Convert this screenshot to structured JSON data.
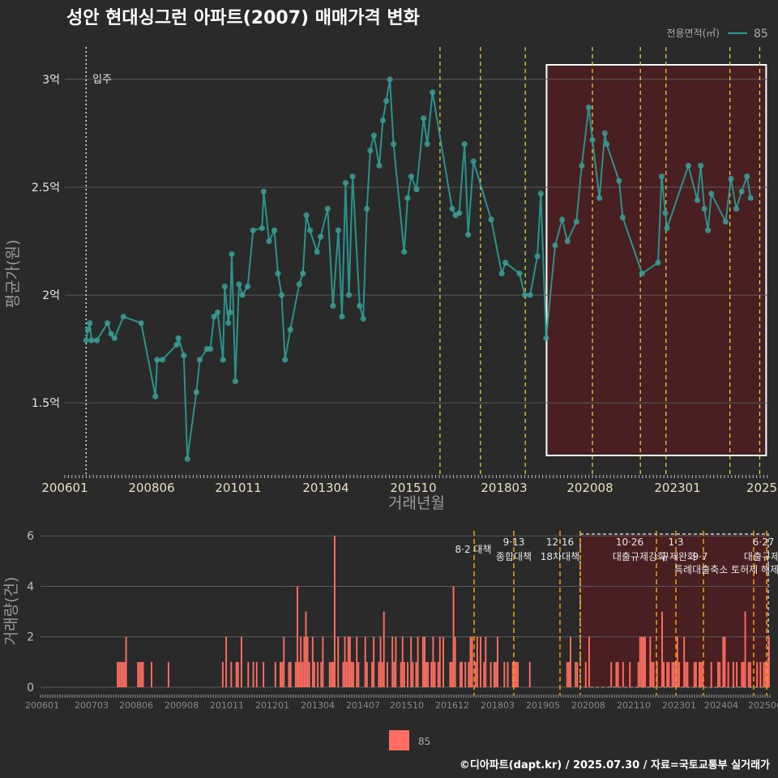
{
  "title": "성안 현대싱그런 아파트(2007) 매매가격 변화",
  "footer": "©디아파트(dapt.kr) / 2025.07.30 / 자료=국토교통부 실거래가",
  "colors": {
    "background": "#2a2a2b",
    "price_line": "#2a9d97",
    "price_point": "#3a9c95",
    "bar": "#ff6f61",
    "highlight_fill": "#4a1f22",
    "event_line_top": "#e8e03a",
    "event_line_bottom": "#f2a000",
    "grid": "#5a5a5a"
  },
  "chart_data": [
    {
      "type": "line",
      "title": "성안 현대싱그런 아파트(2007) 매매가격 변화",
      "xlabel": "거래년월",
      "ylabel": "평균가(원)",
      "ylim": [
        1.17,
        3.15
      ],
      "y_unit": "억",
      "y_ticks": [
        1.5,
        2.0,
        2.5,
        3.0
      ],
      "y_tick_labels": [
        "1.5억",
        "2억",
        "2.5억",
        "3억"
      ],
      "x_ticks": [
        "200601",
        "200806",
        "201011",
        "201304",
        "201510",
        "201803",
        "202008",
        "202301",
        "2025"
      ],
      "legend": {
        "title": "전용면적(㎡)",
        "entries": [
          "85"
        ],
        "position": "top-right"
      },
      "annotation": {
        "label": "입주",
        "x": "2007.0"
      },
      "grid": true,
      "series": [
        {
          "name": "85",
          "points": [
            [
              "2007.00",
              1.79
            ],
            [
              "2007.08",
              1.84
            ],
            [
              "2007.17",
              1.87
            ],
            [
              "2007.25",
              1.79
            ],
            [
              "2007.50",
              1.79
            ],
            [
              "2008.00",
              1.87
            ],
            [
              "2008.17",
              1.82
            ],
            [
              "2008.33",
              1.8
            ],
            [
              "2008.75",
              1.9
            ],
            [
              "2009.58",
              1.87
            ],
            [
              "2010.25",
              1.53
            ],
            [
              "2010.33",
              1.7
            ],
            [
              "2010.58",
              1.7
            ],
            [
              "2011.25",
              1.77
            ],
            [
              "2011.33",
              1.8
            ],
            [
              "2011.58",
              1.72
            ],
            [
              "2011.75",
              1.24
            ],
            [
              "2012.17",
              1.55
            ],
            [
              "2012.33",
              1.7
            ],
            [
              "2012.67",
              1.75
            ],
            [
              "2012.83",
              1.75
            ],
            [
              "2013.00",
              1.9
            ],
            [
              "2013.17",
              1.92
            ],
            [
              "2013.42",
              1.7
            ],
            [
              "2013.50",
              2.04
            ],
            [
              "2013.67",
              1.87
            ],
            [
              "2013.75",
              1.92
            ],
            [
              "2013.83",
              2.19
            ],
            [
              "2014.00",
              1.6
            ],
            [
              "2014.17",
              2.05
            ],
            [
              "2014.33",
              2.0
            ],
            [
              "2014.58",
              2.04
            ],
            [
              "2014.83",
              2.3
            ],
            [
              "2015.25",
              2.31
            ],
            [
              "2015.33",
              2.48
            ],
            [
              "2015.58",
              2.25
            ],
            [
              "2015.83",
              2.3
            ],
            [
              "2016.00",
              2.1
            ],
            [
              "2016.17",
              2.0
            ],
            [
              "2016.33",
              1.7
            ],
            [
              "2016.58",
              1.84
            ],
            [
              "2017.00",
              2.05
            ],
            [
              "2017.17",
              2.1
            ],
            [
              "2017.33",
              2.37
            ],
            [
              "2017.50",
              2.3
            ],
            [
              "2017.83",
              2.2
            ],
            [
              "2018.00",
              2.27
            ],
            [
              "2018.33",
              2.4
            ],
            [
              "2018.58",
              1.95
            ],
            [
              "2018.83",
              2.3
            ],
            [
              "2019.00",
              1.9
            ],
            [
              "2019.17",
              2.52
            ],
            [
              "2019.33",
              2.0
            ],
            [
              "2019.50",
              2.55
            ],
            [
              "2019.83",
              1.95
            ],
            [
              "2020.00",
              1.89
            ],
            [
              "2020.17",
              2.4
            ],
            [
              "2020.33",
              2.67
            ],
            [
              "2020.50",
              2.74
            ],
            [
              "2020.75",
              2.6
            ],
            [
              "2020.92",
              2.81
            ],
            [
              "2021.08",
              2.9
            ],
            [
              "2021.25",
              3.0
            ],
            [
              "2021.42",
              2.7
            ],
            [
              "2021.92",
              2.2
            ],
            [
              "2022.08",
              2.45
            ],
            [
              "2022.25",
              2.55
            ],
            [
              "2022.50",
              2.49
            ],
            [
              "2022.83",
              2.82
            ],
            [
              "2023.00",
              2.7
            ],
            [
              "2023.25",
              2.94
            ],
            [
              "2024.17",
              2.4
            ],
            [
              "2024.33",
              2.37
            ],
            [
              "2024.50",
              2.38
            ],
            [
              "2024.75",
              2.7
            ],
            [
              "2024.92",
              2.28
            ],
            [
              "2025.17",
              2.62
            ],
            [
              "2026.00",
              2.35
            ],
            [
              "2026.50",
              2.1
            ],
            [
              "2026.67",
              2.15
            ],
            [
              "2027.33",
              2.1
            ],
            [
              "2027.58",
              2.0
            ],
            [
              "2027.83",
              2.0
            ],
            [
              "2028.17",
              2.18
            ],
            [
              "2028.33",
              2.47
            ],
            [
              "2028.58",
              1.8
            ],
            [
              "2029.00",
              2.23
            ],
            [
              "2029.33",
              2.35
            ],
            [
              "2029.58",
              2.25
            ],
            [
              "2030.00",
              2.34
            ],
            [
              "2030.25",
              2.6
            ],
            [
              "2030.58",
              2.87
            ],
            [
              "2030.75",
              2.72
            ],
            [
              "2031.08",
              2.45
            ],
            [
              "2031.33",
              2.75
            ],
            [
              "2031.42",
              2.7
            ],
            [
              "2032.00",
              2.53
            ],
            [
              "2032.17",
              2.36
            ],
            [
              "2033.08",
              2.1
            ],
            [
              "2033.83",
              2.15
            ],
            [
              "2034.00",
              2.55
            ],
            [
              "2034.17",
              2.38
            ],
            [
              "2034.25",
              2.31
            ],
            [
              "2035.25",
              2.6
            ],
            [
              "2035.67",
              2.44
            ],
            [
              "2035.83",
              2.6
            ],
            [
              "2036.00",
              2.4
            ],
            [
              "2036.17",
              2.3
            ],
            [
              "2036.33",
              2.47
            ],
            [
              "2037.00",
              2.34
            ],
            [
              "2037.25",
              2.54
            ],
            [
              "2037.50",
              2.4
            ],
            [
              "2037.75",
              2.48
            ],
            [
              "2038.00",
              2.55
            ],
            [
              "2038.17",
              2.45
            ]
          ]
        }
      ]
    },
    {
      "type": "bar",
      "ylabel": "거래량(건)",
      "ylim": [
        0,
        6.2
      ],
      "y_ticks": [
        0,
        2,
        4,
        6
      ],
      "x_ticks": [
        "200601",
        "200703",
        "200806",
        "200908",
        "201011",
        "201201",
        "201304",
        "201407",
        "201510",
        "201612",
        "201803",
        "201905",
        "202008",
        "202110",
        "202301",
        "202404",
        "202506"
      ],
      "legend": {
        "entries": [
          "85"
        ],
        "position": "bottom"
      },
      "series": [
        {
          "name": "85",
          "values": [
            0,
            0,
            0,
            0,
            0,
            0,
            0,
            0,
            0,
            0,
            0,
            0,
            0,
            0,
            0,
            0,
            0,
            0,
            0,
            0,
            0,
            0,
            0,
            0,
            0,
            0,
            0,
            0,
            0,
            0,
            0,
            0,
            0,
            0,
            0,
            0,
            0,
            0,
            0,
            0,
            0,
            0,
            0,
            0,
            0,
            1,
            1,
            1,
            1,
            1,
            2,
            0,
            0,
            0,
            0,
            0,
            0,
            1,
            1,
            1,
            1,
            0,
            0,
            0,
            0,
            1,
            0,
            0,
            0,
            0,
            0,
            0,
            0,
            0,
            0,
            1,
            0,
            0,
            0,
            0,
            0,
            0,
            0,
            0,
            0,
            0,
            0,
            0,
            0,
            0,
            0,
            0,
            0,
            0,
            0,
            0,
            0,
            0,
            0,
            0,
            0,
            0,
            0,
            0,
            0,
            0,
            0,
            1,
            0,
            2,
            0,
            0,
            1,
            0,
            0,
            1,
            1,
            0,
            2,
            0,
            0,
            0,
            1,
            0,
            0,
            1,
            0,
            1,
            0,
            0,
            0,
            1,
            0,
            0,
            0,
            0,
            0,
            0,
            1,
            0,
            0,
            1,
            1,
            2,
            0,
            0,
            1,
            1,
            0,
            0,
            1,
            4,
            1,
            2,
            1,
            2,
            3,
            2,
            1,
            0,
            2,
            1,
            0,
            1,
            0,
            1,
            2,
            0,
            0,
            0,
            1,
            1,
            1,
            6,
            0,
            2,
            0,
            0,
            1,
            2,
            1,
            2,
            2,
            1,
            1,
            0,
            2,
            1,
            0,
            0,
            0,
            2,
            1,
            0,
            0,
            1,
            2,
            0,
            0,
            1,
            2,
            1,
            3,
            0,
            1,
            0,
            0,
            2,
            1,
            2,
            0,
            0,
            1,
            2,
            1,
            0,
            1,
            0,
            2,
            1,
            0,
            1,
            2,
            0,
            0,
            2,
            2,
            1,
            1,
            0,
            1,
            2,
            1,
            0,
            1,
            2,
            0,
            2,
            0,
            0,
            0,
            1,
            1,
            4,
            2,
            0,
            0,
            1,
            1,
            0,
            1,
            0,
            1,
            2,
            2,
            0,
            1,
            2,
            0,
            2,
            0,
            1,
            2,
            0,
            0,
            1,
            0,
            1,
            1,
            2,
            0,
            0,
            0,
            1,
            0,
            1,
            0,
            0,
            1,
            1,
            1,
            1,
            0,
            0,
            0,
            0,
            0,
            0,
            1,
            0,
            0,
            0,
            0,
            0,
            0,
            0,
            0,
            0,
            0,
            0,
            0,
            0,
            0,
            0,
            0,
            0,
            0,
            0,
            0,
            0,
            1,
            1,
            2,
            0,
            0,
            1,
            1,
            0,
            0,
            0,
            0,
            1,
            0,
            2,
            0,
            0,
            0,
            0,
            0,
            0,
            0,
            0,
            0,
            0,
            0,
            0,
            1,
            0,
            0,
            1,
            1,
            0,
            0,
            1,
            0,
            0,
            0,
            1,
            0,
            0,
            0,
            0,
            1,
            2,
            2,
            2,
            2,
            0,
            0,
            2,
            1,
            1,
            0,
            1,
            0,
            0,
            3,
            1,
            0,
            1,
            1,
            0,
            1,
            1,
            1,
            2,
            1,
            0,
            0,
            2,
            1,
            1,
            0,
            0,
            0,
            1,
            1,
            0,
            1,
            1,
            1,
            0,
            0,
            0,
            0,
            1,
            0,
            0,
            0,
            1,
            1,
            0,
            2,
            2,
            0,
            1,
            0,
            0,
            1,
            0,
            1,
            0,
            0,
            1,
            1,
            3,
            0,
            1,
            1,
            0,
            0,
            0,
            1,
            0,
            1,
            0,
            1,
            1,
            1,
            2
          ]
        }
      ]
    }
  ],
  "events": [
    {
      "label": "8·2 대책",
      "sub": ""
    },
    {
      "label": "9·13",
      "sub": "종합대책"
    },
    {
      "label": "12·16",
      "sub": "18차대책"
    },
    {
      "label": "10·26",
      "sub": "대출규제강화"
    },
    {
      "label": "1·3",
      "sub": "규제완화"
    },
    {
      "label": "9·7",
      "sub": "특례대출축소 토허제 해제"
    },
    {
      "label": "6·27",
      "sub": "대출규제"
    }
  ]
}
